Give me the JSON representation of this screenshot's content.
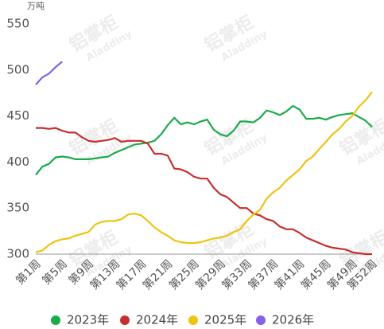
{
  "chart_data": {
    "type": "line",
    "y_unit": "万吨",
    "watermark": [
      "铝掌柜",
      "Aladdiny"
    ],
    "categories": [
      "第1周",
      null,
      null,
      null,
      "第5周",
      null,
      null,
      null,
      "第9周",
      null,
      null,
      null,
      "第13周",
      null,
      null,
      null,
      "第17周",
      null,
      null,
      null,
      "第21周",
      null,
      null,
      null,
      "第25周",
      null,
      null,
      null,
      "第29周",
      null,
      null,
      null,
      "第33周",
      null,
      null,
      null,
      "第37周",
      null,
      null,
      null,
      "第41周",
      null,
      null,
      null,
      "第45周",
      null,
      null,
      null,
      "第49周",
      null,
      null,
      "第52周"
    ],
    "ylim": [
      300,
      550
    ],
    "yticks": [
      300,
      350,
      400,
      450,
      500,
      550
    ],
    "grid": false,
    "legend": "bottom",
    "series": [
      {
        "name": "2023年",
        "color": "#1aab4b",
        "values": [
          386,
          395,
          398,
          405,
          406,
          405,
          403,
          403,
          403,
          404,
          405,
          406,
          410,
          413,
          416,
          419,
          420,
          421,
          423,
          430,
          440,
          448,
          441,
          443,
          441,
          444,
          446,
          435,
          430,
          428,
          434,
          444,
          444,
          443,
          448,
          456,
          454,
          451,
          455,
          461,
          457,
          447,
          447,
          448,
          446,
          449,
          451,
          452,
          453,
          449,
          445,
          438
        ]
      },
      {
        "name": "2024年",
        "color": "#c62f2f",
        "values": [
          437,
          437,
          436,
          437,
          434,
          432,
          432,
          427,
          423,
          422,
          423,
          424,
          426,
          422,
          423,
          423,
          423,
          420,
          409,
          409,
          407,
          393,
          392,
          389,
          384,
          382,
          382,
          372,
          365,
          362,
          356,
          350,
          350,
          344,
          342,
          338,
          336,
          330,
          327,
          327,
          323,
          318,
          315,
          312,
          309,
          307,
          306,
          305,
          302,
          301,
          300,
          300
        ]
      },
      {
        "name": "2025年",
        "color": "#f0c30f",
        "values": [
          302,
          304,
          310,
          314,
          316,
          317,
          320,
          322,
          324,
          332,
          335,
          336,
          336,
          338,
          343,
          344,
          342,
          336,
          329,
          324,
          320,
          315,
          313,
          312,
          312,
          313,
          315,
          317,
          318,
          320,
          324,
          327,
          336,
          343,
          348,
          360,
          367,
          372,
          380,
          386,
          392,
          401,
          406,
          414,
          422,
          430,
          436,
          444,
          450,
          460,
          467,
          476
        ]
      },
      {
        "name": "2026年",
        "color": "#8462e4",
        "values": [
          484,
          492,
          496,
          503,
          509,
          null,
          null,
          null,
          null,
          null,
          null,
          null,
          null,
          null,
          null,
          null,
          null,
          null,
          null,
          null,
          null,
          null,
          null,
          null,
          null,
          null,
          null,
          null,
          null,
          null,
          null,
          null,
          null,
          null,
          null,
          null,
          null,
          null,
          null,
          null,
          null,
          null,
          null,
          null,
          null,
          null,
          null,
          null,
          null,
          null,
          null,
          null
        ]
      }
    ]
  }
}
